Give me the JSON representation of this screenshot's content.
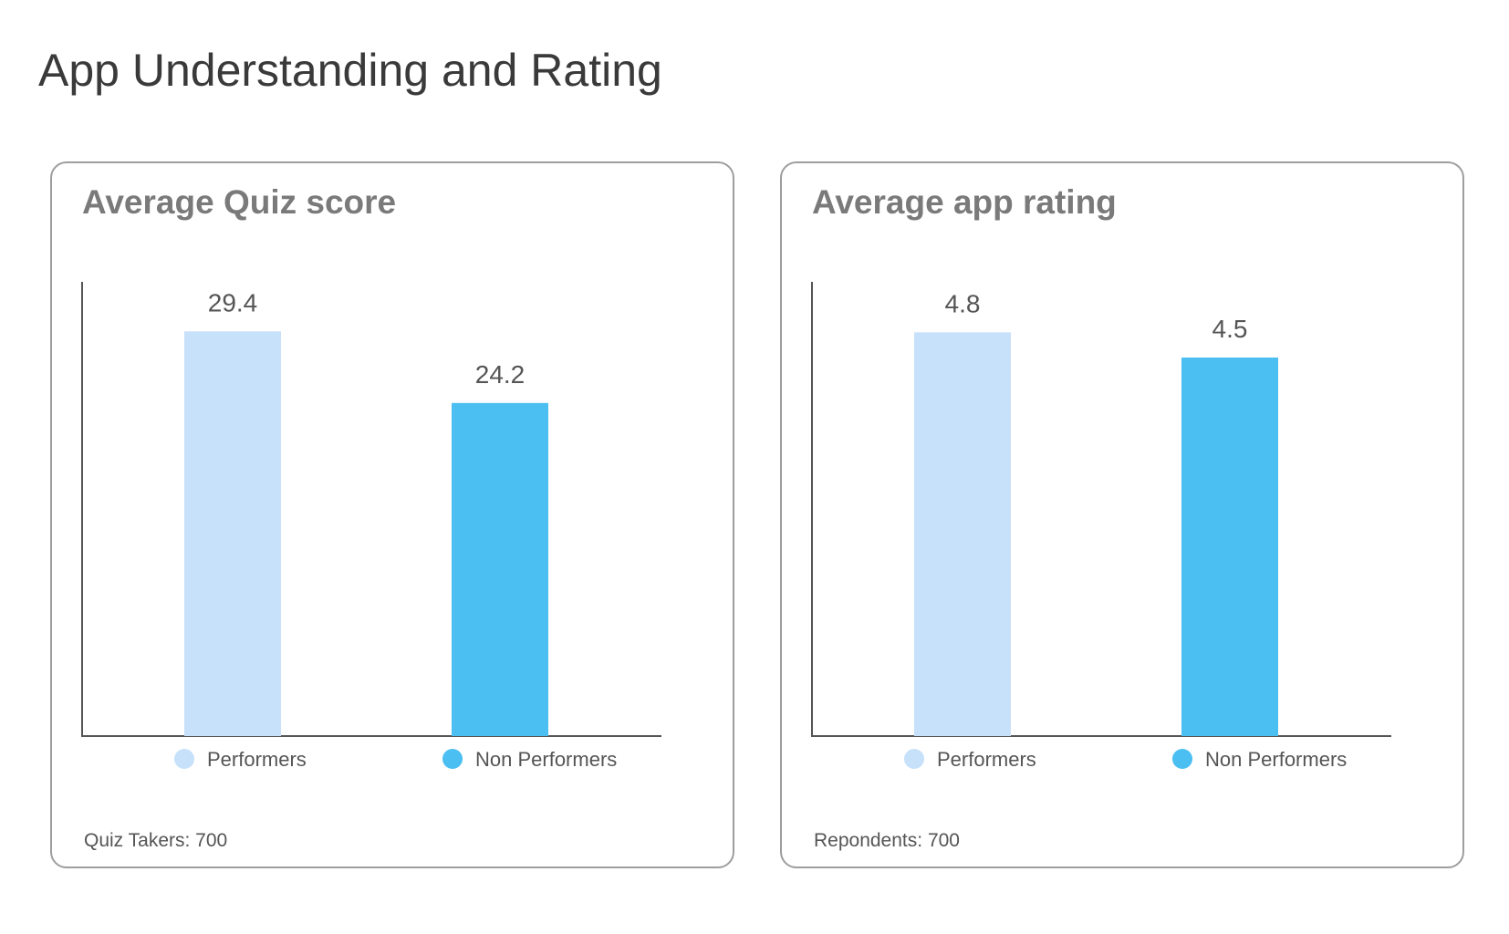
{
  "page": {
    "title": "App Understanding and Rating"
  },
  "colors": {
    "performers": "#c7e1fa",
    "non_performers": "#4bbff1",
    "axis": "#555555",
    "value_label": "#555555",
    "legend_text": "#555555"
  },
  "chart_data": [
    {
      "type": "bar",
      "title": "Average Quiz score",
      "categories": [
        "Performers",
        "Non Performers"
      ],
      "values": [
        29.4,
        24.2
      ],
      "value_labels": [
        "29.4",
        "24.2"
      ],
      "ylim": [
        0,
        33
      ],
      "xlabel": "",
      "ylabel": "",
      "grid": false,
      "legend": {
        "position": "bottom",
        "entries": [
          "Performers",
          "Non Performers"
        ]
      },
      "footnote": {
        "label": "Quiz Takers:",
        "value": "700"
      }
    },
    {
      "type": "bar",
      "title": "Average app rating",
      "categories": [
        "Performers",
        "Non Performers"
      ],
      "values": [
        4.8,
        4.5
      ],
      "value_labels": [
        "4.8",
        "4.5"
      ],
      "ylim": [
        0,
        5.4
      ],
      "xlabel": "",
      "ylabel": "",
      "grid": false,
      "legend": {
        "position": "bottom",
        "entries": [
          "Performers",
          "Non Performers"
        ]
      },
      "footnote": {
        "label": "Repondents:",
        "value": "700"
      }
    }
  ]
}
